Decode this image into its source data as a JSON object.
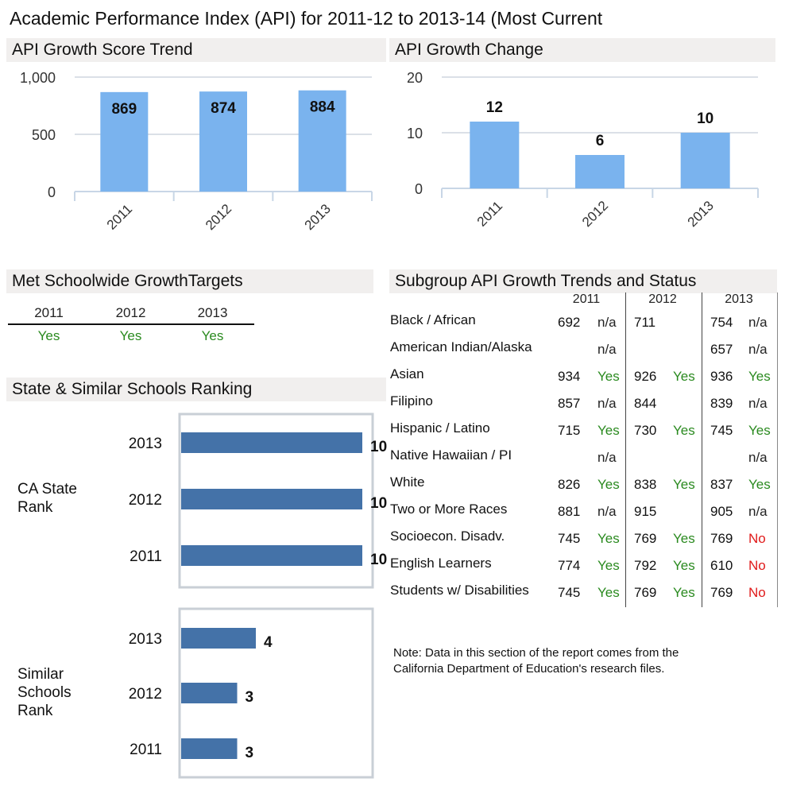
{
  "page_title": "Academic Performance Index (API) for 2011-12 to 2013-14 (Most Current",
  "sections": {
    "growth_score": "API Growth Score Trend",
    "growth_change": "API Growth Change",
    "met_targets": "Met Schoolwide GrowthTargets",
    "ranking": "State & Similar Schools Ranking",
    "subgroup": "Subgroup API Growth Trends and Status"
  },
  "chart_data": [
    {
      "type": "bar",
      "title": "API Growth Score Trend",
      "categories": [
        "2011",
        "2012",
        "2013"
      ],
      "values": [
        869,
        874,
        884
      ],
      "ylim": [
        0,
        1000
      ],
      "yticks": [
        "1,000",
        "500",
        "0"
      ],
      "grid": true,
      "color": "#7ab3ee"
    },
    {
      "type": "bar",
      "title": "API Growth Change",
      "categories": [
        "2011",
        "2012",
        "2013"
      ],
      "values": [
        12,
        6,
        10
      ],
      "ylim": [
        0,
        20
      ],
      "yticks": [
        "20",
        "10",
        "0"
      ],
      "grid": true,
      "color": "#7ab3ee"
    },
    {
      "type": "bar",
      "orientation": "horizontal",
      "title": "CA State Rank",
      "categories": [
        "2013",
        "2012",
        "2011"
      ],
      "values": [
        10,
        10,
        10
      ],
      "xlim": [
        0,
        10
      ],
      "color": "#4472a8"
    },
    {
      "type": "bar",
      "orientation": "horizontal",
      "title": "Similar Schools Rank",
      "categories": [
        "2013",
        "2012",
        "2011"
      ],
      "values": [
        4,
        3,
        3
      ],
      "xlim": [
        0,
        10
      ],
      "color": "#4472a8"
    }
  ],
  "rank_labels": {
    "state": [
      "CA State",
      "Rank"
    ],
    "similar": [
      "Similar",
      "Schools",
      "Rank"
    ]
  },
  "met_targets": {
    "years": [
      "2011",
      "2012",
      "2013"
    ],
    "values": [
      "Yes",
      "Yes",
      "Yes"
    ]
  },
  "subgroup_table": {
    "years": [
      "2011",
      "2012",
      "2013"
    ],
    "rows": [
      {
        "name": "Black / African",
        "cells": [
          [
            "692",
            "n/a"
          ],
          [
            "711",
            ""
          ],
          [
            "754",
            "n/a"
          ]
        ]
      },
      {
        "name": "American Indian/Alaska",
        "cells": [
          [
            "",
            "n/a"
          ],
          [
            "",
            ""
          ],
          [
            "657",
            "n/a"
          ]
        ]
      },
      {
        "name": "Asian",
        "cells": [
          [
            "934",
            "Yes"
          ],
          [
            "926",
            "Yes"
          ],
          [
            "936",
            "Yes"
          ]
        ]
      },
      {
        "name": "Filipino",
        "cells": [
          [
            "857",
            "n/a"
          ],
          [
            "844",
            ""
          ],
          [
            "839",
            "n/a"
          ]
        ]
      },
      {
        "name": "Hispanic / Latino",
        "cells": [
          [
            "715",
            "Yes"
          ],
          [
            "730",
            "Yes"
          ],
          [
            "745",
            "Yes"
          ]
        ]
      },
      {
        "name": "Native Hawaiian / PI",
        "cells": [
          [
            "",
            "n/a"
          ],
          [
            "",
            ""
          ],
          [
            "",
            "n/a"
          ]
        ]
      },
      {
        "name": "White",
        "cells": [
          [
            "826",
            "Yes"
          ],
          [
            "838",
            "Yes"
          ],
          [
            "837",
            "Yes"
          ]
        ]
      },
      {
        "name": "Two or More Races",
        "cells": [
          [
            "881",
            "n/a"
          ],
          [
            "915",
            ""
          ],
          [
            "905",
            "n/a"
          ]
        ]
      },
      {
        "name": "Socioecon. Disadv.",
        "cells": [
          [
            "745",
            "Yes"
          ],
          [
            "769",
            "Yes"
          ],
          [
            "769",
            "No"
          ]
        ]
      },
      {
        "name": "English Learners",
        "cells": [
          [
            "774",
            "Yes"
          ],
          [
            "792",
            "Yes"
          ],
          [
            "610",
            "No"
          ]
        ]
      },
      {
        "name": "Students w/ Disabilities",
        "cells": [
          [
            "745",
            "Yes"
          ],
          [
            "769",
            "Yes"
          ],
          [
            "769",
            "No"
          ]
        ]
      }
    ]
  },
  "note": [
    "Note: Data in this section of the report comes from the",
    "California Department of Education's research files."
  ],
  "colors": {
    "yes": "#2a8a1f",
    "no": "#e01a1a",
    "header_bg": "#f1efee"
  }
}
